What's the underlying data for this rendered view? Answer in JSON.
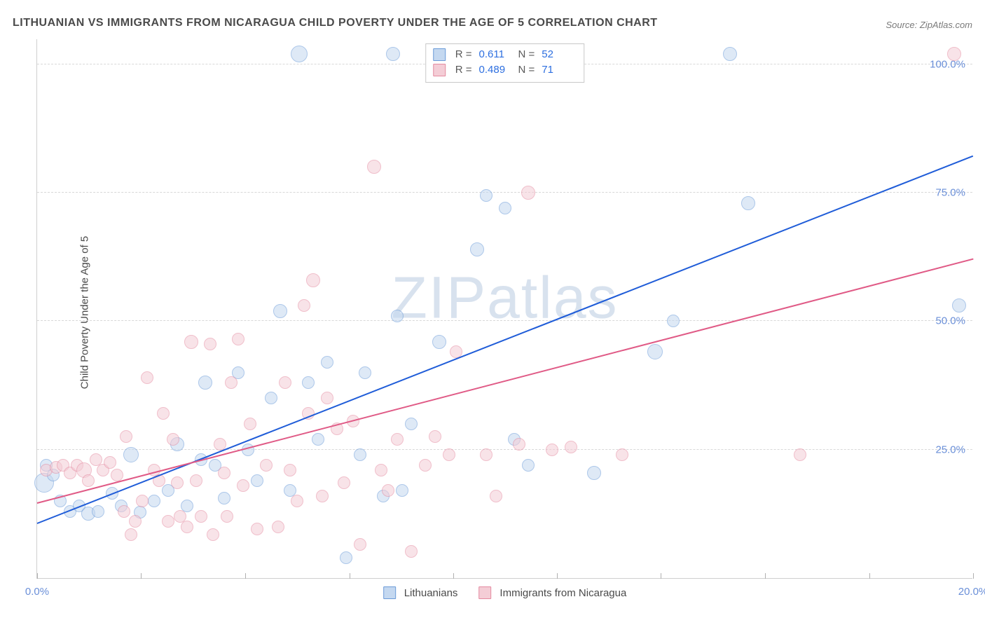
{
  "title": "LITHUANIAN VS IMMIGRANTS FROM NICARAGUA CHILD POVERTY UNDER THE AGE OF 5 CORRELATION CHART",
  "source": "Source: ZipAtlas.com",
  "ylabel": "Child Poverty Under the Age of 5",
  "watermark": "ZIPatlas",
  "chart": {
    "type": "scatter",
    "xlim": [
      0,
      20
    ],
    "ylim": [
      0,
      105
    ],
    "x_ticks": [
      0,
      2.22,
      4.44,
      6.67,
      8.89,
      11.11,
      13.33,
      15.56,
      17.78,
      20
    ],
    "x_tick_labels_shown": {
      "0": "0.0%",
      "20": "20.0%"
    },
    "y_gridlines": [
      25,
      50,
      75,
      100
    ],
    "y_tick_labels": {
      "25": "25.0%",
      "50": "50.0%",
      "75": "75.0%",
      "100": "100.0%"
    },
    "background_color": "#ffffff",
    "grid_color": "#d8d8d8",
    "axis_color": "#cfcfcf",
    "tick_label_color": "#6a8fd8",
    "series": [
      {
        "name": "Lithuanians",
        "fill": "#c4d8f0",
        "stroke": "#6a9ad8",
        "fill_opacity": 0.55,
        "marker_radius": 9,
        "r_value": "0.611",
        "n_value": "52",
        "trend": {
          "x1": 0,
          "y1": 10.5,
          "x2": 20,
          "y2": 82,
          "color": "#1f5cd8",
          "width": 2
        },
        "points": [
          [
            0.15,
            18.5,
            14
          ],
          [
            0.2,
            22,
            9
          ],
          [
            0.35,
            20,
            9
          ],
          [
            0.5,
            15,
            9
          ],
          [
            0.7,
            13,
            9
          ],
          [
            0.9,
            14,
            9
          ],
          [
            1.1,
            12.5,
            10
          ],
          [
            1.3,
            13,
            9
          ],
          [
            1.6,
            16.5,
            9
          ],
          [
            1.8,
            14,
            9
          ],
          [
            2.0,
            24,
            11
          ],
          [
            2.2,
            12.8,
            9
          ],
          [
            2.5,
            15,
            9
          ],
          [
            2.8,
            17,
            9
          ],
          [
            3.0,
            26,
            10
          ],
          [
            3.2,
            14,
            9
          ],
          [
            3.5,
            23,
            9
          ],
          [
            3.6,
            38,
            10
          ],
          [
            3.8,
            22,
            9
          ],
          [
            4.0,
            15.5,
            9
          ],
          [
            4.3,
            40,
            9
          ],
          [
            4.5,
            25,
            9
          ],
          [
            4.7,
            19,
            9
          ],
          [
            5.0,
            35,
            9
          ],
          [
            5.2,
            52,
            10
          ],
          [
            5.4,
            17,
            9
          ],
          [
            5.6,
            102,
            12
          ],
          [
            5.8,
            38,
            9
          ],
          [
            6.0,
            27,
            9
          ],
          [
            6.2,
            42,
            9
          ],
          [
            6.6,
            4,
            9
          ],
          [
            6.9,
            24,
            9
          ],
          [
            7.0,
            40,
            9
          ],
          [
            7.4,
            16,
            9
          ],
          [
            7.6,
            102,
            10
          ],
          [
            7.7,
            51,
            9
          ],
          [
            7.8,
            17,
            9
          ],
          [
            8.0,
            30,
            9
          ],
          [
            8.6,
            46,
            10
          ],
          [
            9.4,
            64,
            10
          ],
          [
            9.6,
            74.5,
            9
          ],
          [
            10.0,
            72,
            9
          ],
          [
            10.2,
            27,
            9
          ],
          [
            10.5,
            22,
            9
          ],
          [
            11.9,
            20.5,
            10
          ],
          [
            13.2,
            44,
            11
          ],
          [
            13.6,
            50,
            9
          ],
          [
            14.8,
            102,
            10
          ],
          [
            15.2,
            73,
            10
          ],
          [
            19.7,
            53,
            10
          ]
        ]
      },
      {
        "name": "Immigrants from Nicaragua",
        "fill": "#f4cdd6",
        "stroke": "#e48aa0",
        "fill_opacity": 0.55,
        "marker_radius": 9,
        "r_value": "0.489",
        "n_value": "71",
        "trend": {
          "x1": 0,
          "y1": 14.5,
          "x2": 20,
          "y2": 62,
          "color": "#e05a86",
          "width": 2
        },
        "points": [
          [
            0.2,
            21,
            9
          ],
          [
            0.4,
            21.5,
            9
          ],
          [
            0.55,
            22,
            9
          ],
          [
            0.7,
            20.5,
            9
          ],
          [
            0.85,
            22,
            9
          ],
          [
            1.0,
            21,
            11
          ],
          [
            1.1,
            19,
            9
          ],
          [
            1.25,
            23,
            9
          ],
          [
            1.4,
            21,
            9
          ],
          [
            1.55,
            22.5,
            9
          ],
          [
            1.7,
            20,
            9
          ],
          [
            1.85,
            13,
            9
          ],
          [
            1.9,
            27.5,
            9
          ],
          [
            2.0,
            8.5,
            9
          ],
          [
            2.1,
            11,
            9
          ],
          [
            2.25,
            15,
            9
          ],
          [
            2.35,
            39,
            9
          ],
          [
            2.5,
            21,
            9
          ],
          [
            2.6,
            19,
            9
          ],
          [
            2.7,
            32,
            9
          ],
          [
            2.8,
            11,
            9
          ],
          [
            2.9,
            27,
            9
          ],
          [
            3.0,
            18.5,
            9
          ],
          [
            3.05,
            12,
            9
          ],
          [
            3.2,
            10,
            9
          ],
          [
            3.3,
            46,
            10
          ],
          [
            3.4,
            19,
            9
          ],
          [
            3.5,
            12,
            9
          ],
          [
            3.7,
            45.5,
            9
          ],
          [
            3.75,
            8.5,
            9
          ],
          [
            3.9,
            26,
            9
          ],
          [
            4.0,
            20.5,
            9
          ],
          [
            4.05,
            12,
            9
          ],
          [
            4.15,
            38,
            9
          ],
          [
            4.3,
            46.5,
            9
          ],
          [
            4.4,
            18,
            9
          ],
          [
            4.55,
            30,
            9
          ],
          [
            4.7,
            9.5,
            9
          ],
          [
            4.9,
            22,
            9
          ],
          [
            5.15,
            10,
            9
          ],
          [
            5.3,
            38,
            9
          ],
          [
            5.4,
            21,
            9
          ],
          [
            5.55,
            15,
            9
          ],
          [
            5.7,
            53,
            9
          ],
          [
            5.8,
            32,
            9
          ],
          [
            5.9,
            58,
            10
          ],
          [
            6.1,
            16,
            9
          ],
          [
            6.2,
            35,
            9
          ],
          [
            6.4,
            29,
            9
          ],
          [
            6.55,
            18.5,
            9
          ],
          [
            6.75,
            30.5,
            9
          ],
          [
            6.9,
            6.5,
            9
          ],
          [
            7.2,
            80,
            10
          ],
          [
            7.35,
            21,
            9
          ],
          [
            7.5,
            17,
            9
          ],
          [
            7.7,
            27,
            9
          ],
          [
            8.0,
            5.2,
            9
          ],
          [
            8.3,
            22,
            9
          ],
          [
            8.5,
            27.5,
            9
          ],
          [
            8.8,
            24,
            9
          ],
          [
            8.95,
            44,
            9
          ],
          [
            9.6,
            24,
            9
          ],
          [
            9.8,
            16,
            9
          ],
          [
            10.3,
            26,
            9
          ],
          [
            10.5,
            75,
            10
          ],
          [
            11.0,
            25,
            9
          ],
          [
            11.4,
            25.5,
            9
          ],
          [
            12.5,
            24,
            9
          ],
          [
            16.3,
            24,
            9
          ],
          [
            19.6,
            102,
            10
          ]
        ]
      }
    ],
    "legend_bottom": [
      {
        "label": "Lithuanians",
        "fill": "#c4d8f0",
        "stroke": "#6a9ad8"
      },
      {
        "label": "Immigrants from Nicaragua",
        "fill": "#f4cdd6",
        "stroke": "#e48aa0"
      }
    ]
  }
}
